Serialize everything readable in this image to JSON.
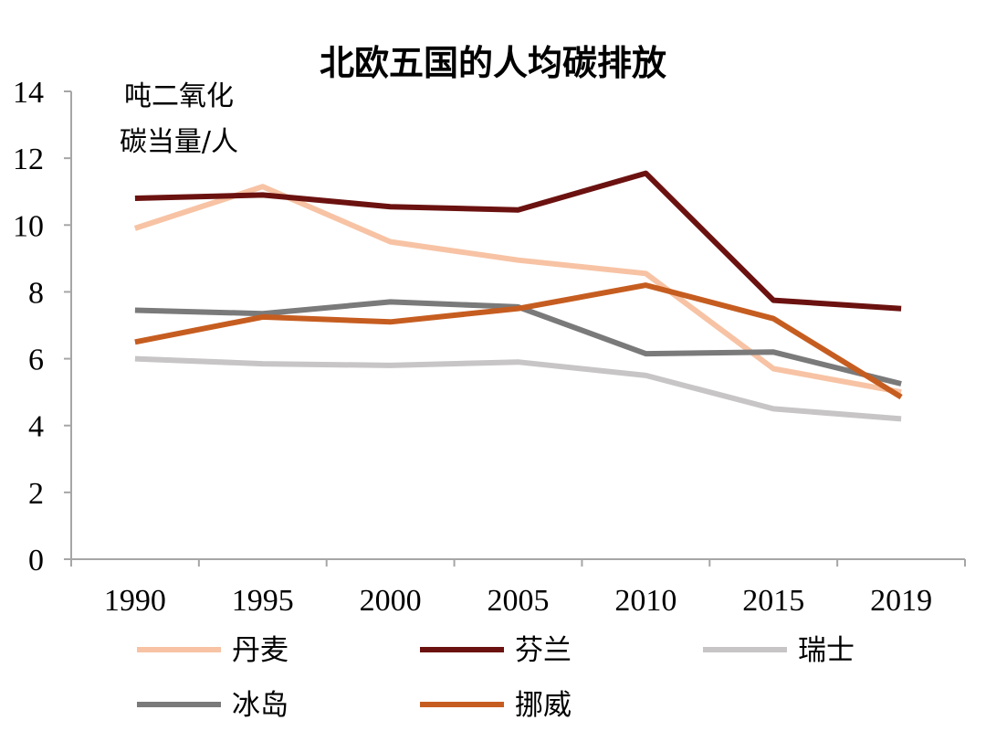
{
  "chart_data": {
    "type": "line",
    "title": "北欧五国的人均碳排放",
    "ylabel_line1": "吨二氧化",
    "ylabel_line2": "碳当量/人",
    "categories": [
      "1990",
      "1995",
      "2000",
      "2005",
      "2010",
      "2015",
      "2019"
    ],
    "ylim": [
      0,
      14
    ],
    "yticks": [
      "0",
      "2",
      "4",
      "6",
      "8",
      "10",
      "12",
      "14"
    ],
    "grid": false,
    "legend_position": "bottom",
    "series": [
      {
        "name": "丹麦",
        "color": "#f7c3a4",
        "values": [
          9.9,
          11.15,
          9.5,
          8.95,
          8.55,
          5.7,
          5.0
        ]
      },
      {
        "name": "芬兰",
        "color": "#6b1210",
        "values": [
          10.8,
          10.9,
          10.55,
          10.45,
          11.55,
          7.75,
          7.5
        ]
      },
      {
        "name": "瑞士",
        "color": "#c7c5c6",
        "values": [
          6.0,
          5.85,
          5.8,
          5.9,
          5.5,
          4.5,
          4.2
        ]
      },
      {
        "name": "冰岛",
        "color": "#7a7a7a",
        "values": [
          7.45,
          7.35,
          7.7,
          7.55,
          6.15,
          6.2,
          5.25
        ]
      },
      {
        "name": "挪威",
        "color": "#c65d20",
        "values": [
          6.5,
          7.25,
          7.1,
          7.5,
          8.2,
          7.2,
          4.85
        ]
      }
    ]
  }
}
